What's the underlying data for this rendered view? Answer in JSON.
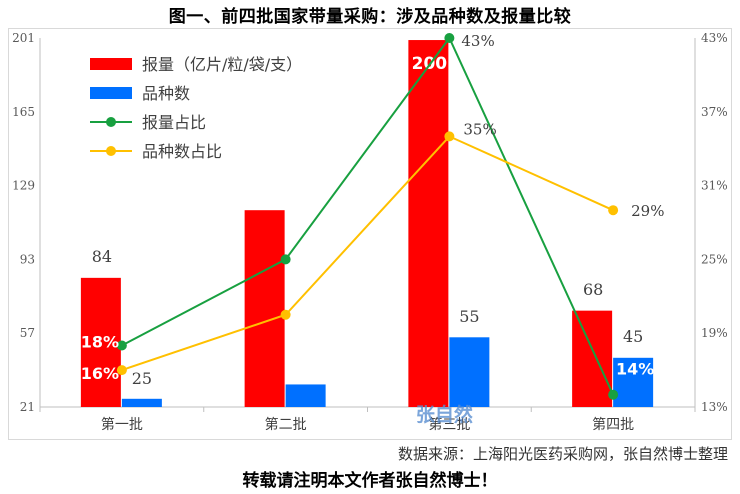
{
  "title": "图一、前四批国家带量采购：涉及品种数及报量比较",
  "source": "数据来源：上海阳光医药采购网，张自然博士整理",
  "footer": "转载请注明本文作者张自然博士！",
  "watermark": "张自然",
  "chart_data": {
    "type": "bar",
    "categories": [
      "第一批",
      "第二批",
      "第三批",
      "第四批"
    ],
    "left_axis": {
      "ylim": [
        21,
        201
      ],
      "ticks": [
        21,
        57,
        93,
        129,
        165,
        201
      ]
    },
    "right_axis": {
      "ylim": [
        13,
        43
      ],
      "ticks": [
        "13%",
        "19%",
        "25%",
        "31%",
        "37%",
        "43%"
      ]
    },
    "series": [
      {
        "name": "报量（亿片/粒/袋/支）",
        "type": "bar",
        "axis": "left",
        "color": "#ff0000",
        "values": [
          84,
          117,
          200,
          68
        ],
        "labels": [
          "84",
          "",
          "200",
          "68"
        ]
      },
      {
        "name": "品种数",
        "type": "bar",
        "axis": "left",
        "color": "#0070ff",
        "values": [
          25,
          32,
          55,
          45
        ],
        "labels": [
          "25",
          "",
          "55",
          "45"
        ]
      },
      {
        "name": "报量占比",
        "type": "line",
        "axis": "right",
        "color": "#18a040",
        "values": [
          18,
          25,
          43,
          14
        ],
        "labels": [
          "18%",
          "",
          "43%",
          "14%"
        ]
      },
      {
        "name": "品种数占比",
        "type": "line",
        "axis": "right",
        "color": "#ffc000",
        "values": [
          16,
          20.5,
          35,
          29
        ],
        "labels": [
          "16%",
          "",
          "35%",
          "29%"
        ]
      }
    ]
  }
}
